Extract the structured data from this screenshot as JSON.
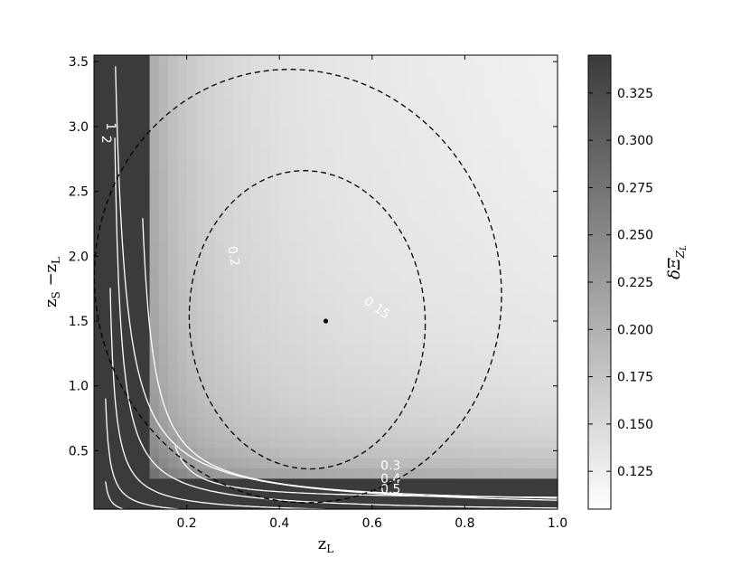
{
  "chart_data": {
    "type": "heatmap",
    "xlabel": "z",
    "xlabel_sub": "L",
    "ylabel_parts": [
      {
        "text": "z",
        "sub": "S"
      },
      {
        "text": " −z",
        "sub": "L"
      }
    ],
    "colorbar_label": "δΞ",
    "colorbar_label_sub": "Z",
    "colorbar_label_subsub": "L",
    "xlim": [
      0.0,
      1.0
    ],
    "ylim": [
      0.05,
      3.55
    ],
    "xticks": [
      "0.2",
      "0.4",
      "0.6",
      "0.8",
      "1.0"
    ],
    "yticks": [
      "0.5",
      "1.0",
      "1.5",
      "2.0",
      "2.5",
      "3.0",
      "3.5"
    ],
    "colorbar": {
      "min": 0.105,
      "max": 0.345,
      "ticks": [
        "0.125",
        "0.150",
        "0.175",
        "0.200",
        "0.225",
        "0.250",
        "0.275",
        "0.300",
        "0.325"
      ]
    },
    "colormap": "gray_reversed",
    "colors": {
      "low": "#ffffff",
      "high": "#3b3b3b",
      "contour": "#ffffff",
      "ellipse": "#000000"
    },
    "contour_levels": [
      {
        "label": "0.15",
        "a": 0.092,
        "b": 1.02,
        "c": 0.17,
        "shape": "inverse"
      },
      {
        "label": "0.2",
        "a": 0.17,
        "b": 0.62,
        "c": 0.1,
        "shape": "inverse"
      },
      {
        "label": "0.3",
        "a": 0.2,
        "b": 0.33,
        "c": 0.03,
        "shape": "inverse"
      },
      {
        "label": "0.4",
        "a": 0.14,
        "b": 0.16,
        "c": 0.04,
        "shape": "inverse"
      },
      {
        "label": "0.5",
        "a": 0.1,
        "b": 0.08,
        "c": 0.03,
        "shape": "inverse"
      },
      {
        "label": "1",
        "a": 0.065,
        "b": 0.02,
        "c": 0.02,
        "shape": "inverse"
      },
      {
        "label": "2",
        "a": 0.035,
        "b": 0.01,
        "c": 0.02,
        "shape": "inverse"
      }
    ],
    "ellipses": [
      {
        "name": "inner",
        "cx": 0.46,
        "cy": 1.51,
        "rx": 0.255,
        "ry": 1.15,
        "angle_deg": -4
      },
      {
        "name": "outer",
        "cx": 0.44,
        "cy": 1.77,
        "rx": 0.44,
        "ry": 1.67,
        "angle_deg": -4
      }
    ],
    "fiducial_point": {
      "x": 0.5,
      "y": 1.5
    },
    "grid": false
  }
}
